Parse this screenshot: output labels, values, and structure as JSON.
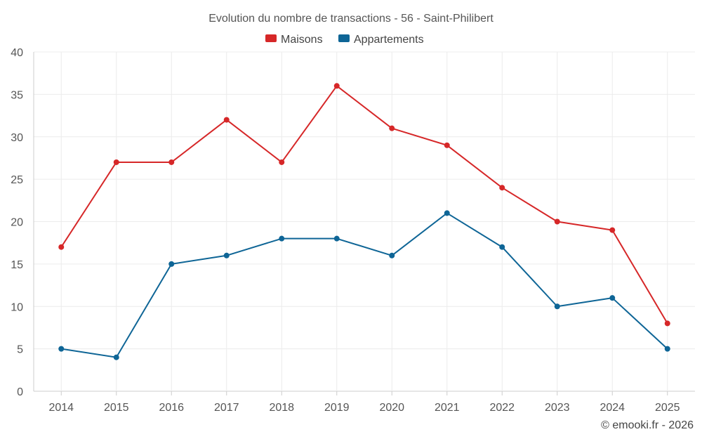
{
  "chart_data": {
    "type": "line",
    "title": "Evolution du nombre de transactions - 56 - Saint-Philibert",
    "categories": [
      "2014",
      "2015",
      "2016",
      "2017",
      "2018",
      "2019",
      "2020",
      "2021",
      "2022",
      "2023",
      "2024",
      "2025"
    ],
    "series": [
      {
        "name": "Maisons",
        "color": "#d62728",
        "values": [
          17,
          27,
          27,
          32,
          27,
          36,
          31,
          29,
          24,
          20,
          19,
          8
        ]
      },
      {
        "name": "Appartements",
        "color": "#0e6596",
        "values": [
          5,
          4,
          15,
          16,
          18,
          18,
          16,
          21,
          17,
          10,
          11,
          5
        ]
      }
    ],
    "ylim": [
      0,
      40
    ],
    "yticks": [
      0,
      5,
      10,
      15,
      20,
      25,
      30,
      35,
      40
    ],
    "xlabel": "",
    "ylabel": "",
    "grid": true,
    "legend_position": "top-center"
  },
  "credit": "© emooki.fr - 2026"
}
